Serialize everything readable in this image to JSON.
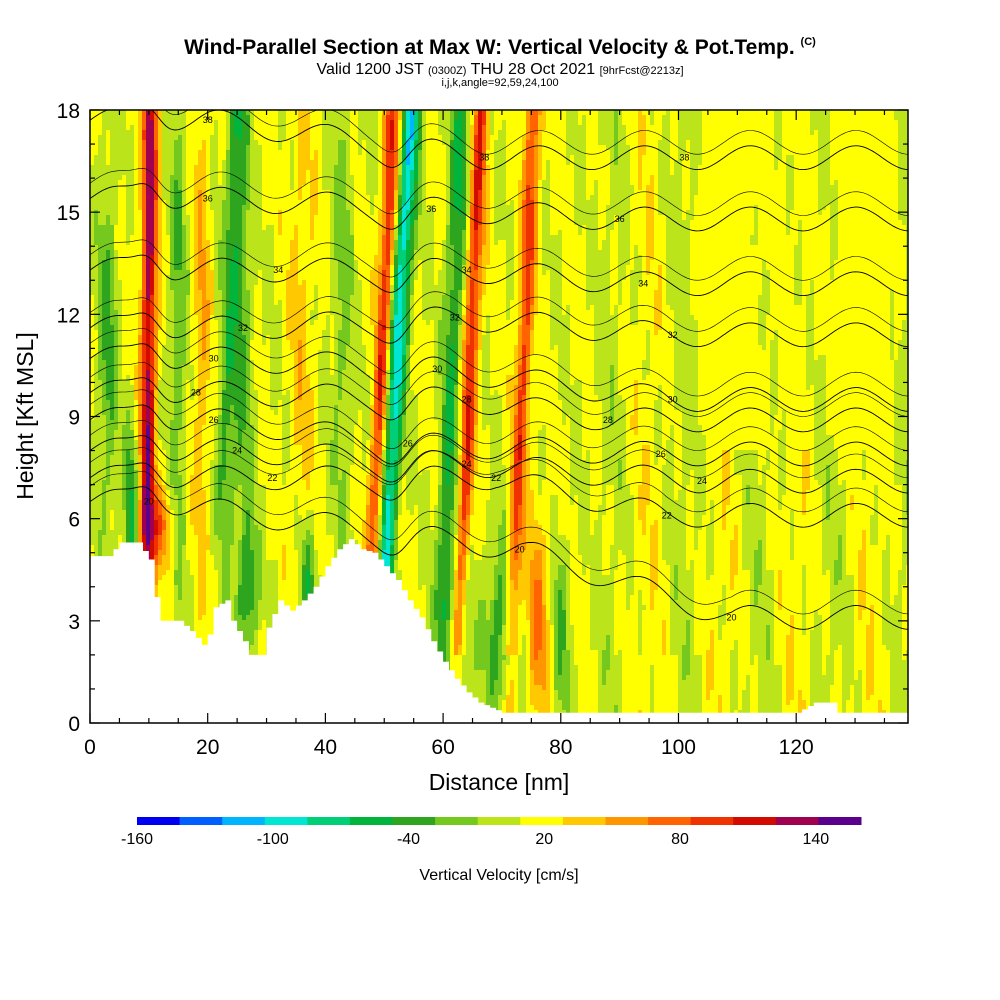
{
  "header": {
    "title": "Wind-Parallel Section at Max W: Vertical Velocity & Pot.Temp.",
    "title_tag": "(C)",
    "valid_prefix": "Valid 1200 JST",
    "valid_utc": "(0300Z)",
    "valid_date": "THU 28 Oct 2021",
    "valid_fcst": "[9hrFcst@2213z]",
    "ijk": "i,j,k,angle=92,59,24,100"
  },
  "chart_data": {
    "type": "heatmap",
    "xlabel": "Distance [nm]",
    "ylabel": "Height [Kft MSL]",
    "xlim": [
      0,
      139
    ],
    "ylim": [
      0,
      18
    ],
    "x_ticks": [
      0,
      20,
      40,
      60,
      80,
      100,
      120
    ],
    "y_ticks": [
      0,
      3,
      6,
      9,
      12,
      15,
      18
    ],
    "colorbar": {
      "label": "Vertical Velocity [cm/s]",
      "tick_labels": [
        "-160",
        "-100",
        "-40",
        "20",
        "80",
        "140"
      ],
      "tick_values": [
        -160,
        -100,
        -40,
        20,
        80,
        140
      ],
      "range": [
        -160,
        160
      ],
      "colors": [
        "#0000f0",
        "#0060ff",
        "#00b4ff",
        "#00e6d2",
        "#00cf78",
        "#00b43c",
        "#2ea51e",
        "#74c81e",
        "#bbe51a",
        "#ffff00",
        "#ffc800",
        "#ff9600",
        "#ff6400",
        "#f03200",
        "#d20a00",
        "#a00050",
        "#5a008c"
      ]
    },
    "updraft_cores": [
      {
        "x": 10,
        "peak_w": 120
      },
      {
        "x": 50,
        "peak_w": 90
      },
      {
        "x": 65,
        "peak_w": 90
      },
      {
        "x": 74,
        "peak_w": 80
      }
    ],
    "downdraft_cores": [
      {
        "x": 53,
        "peak_w": -110
      },
      {
        "x": 62,
        "peak_w": -60
      },
      {
        "x": 24,
        "peak_w": -50
      }
    ],
    "theta_contour_labels": [
      {
        "value": "38",
        "x": 20,
        "y": 17.7
      },
      {
        "value": "38",
        "x": 67,
        "y": 16.6
      },
      {
        "value": "38",
        "x": 101,
        "y": 16.6
      },
      {
        "value": "36",
        "x": 20,
        "y": 15.4
      },
      {
        "value": "36",
        "x": 58,
        "y": 15.1
      },
      {
        "value": "36",
        "x": 90,
        "y": 14.8
      },
      {
        "value": "34",
        "x": 32,
        "y": 13.3
      },
      {
        "value": "34",
        "x": 64,
        "y": 13.3
      },
      {
        "value": "34",
        "x": 94,
        "y": 12.9
      },
      {
        "value": "32",
        "x": 26,
        "y": 11.6
      },
      {
        "value": "32",
        "x": 62,
        "y": 11.9
      },
      {
        "value": "32",
        "x": 99,
        "y": 11.4
      },
      {
        "value": "30",
        "x": 21,
        "y": 10.7
      },
      {
        "value": "30",
        "x": 59,
        "y": 10.4
      },
      {
        "value": "30",
        "x": 99,
        "y": 9.5
      },
      {
        "value": "28",
        "x": 18,
        "y": 9.7
      },
      {
        "value": "28",
        "x": 64,
        "y": 9.5
      },
      {
        "value": "28",
        "x": 88,
        "y": 8.9
      },
      {
        "value": "26",
        "x": 21,
        "y": 8.9
      },
      {
        "value": "26",
        "x": 54,
        "y": 8.2
      },
      {
        "value": "26",
        "x": 97,
        "y": 7.9
      },
      {
        "value": "24",
        "x": 25,
        "y": 8.0
      },
      {
        "value": "24",
        "x": 64,
        "y": 7.6
      },
      {
        "value": "24",
        "x": 104,
        "y": 7.1
      },
      {
        "value": "22",
        "x": 31,
        "y": 7.2
      },
      {
        "value": "22",
        "x": 69,
        "y": 7.2
      },
      {
        "value": "22",
        "x": 98,
        "y": 6.1
      },
      {
        "value": "20",
        "x": 10,
        "y": 6.5
      },
      {
        "value": "20",
        "x": 73,
        "y": 5.1
      },
      {
        "value": "20",
        "x": 109,
        "y": 3.1
      }
    ],
    "terrain": [
      [
        0,
        4.9
      ],
      [
        3,
        4.9
      ],
      [
        5,
        5.3
      ],
      [
        8,
        5.3
      ],
      [
        10,
        4.8
      ],
      [
        11,
        3.7
      ],
      [
        12,
        3.0
      ],
      [
        15,
        3.0
      ],
      [
        17,
        2.7
      ],
      [
        19,
        2.3
      ],
      [
        20,
        2.6
      ],
      [
        21,
        3.4
      ],
      [
        23,
        3.6
      ],
      [
        24,
        3.0
      ],
      [
        26,
        2.4
      ],
      [
        27,
        2.0
      ],
      [
        29,
        2.0
      ],
      [
        30,
        2.8
      ],
      [
        32,
        3.6
      ],
      [
        34,
        3.3
      ],
      [
        36,
        3.6
      ],
      [
        38,
        4.0
      ],
      [
        40,
        4.6
      ],
      [
        42,
        5.1
      ],
      [
        44,
        5.4
      ],
      [
        46,
        5.1
      ],
      [
        48,
        5.0
      ],
      [
        50,
        4.6
      ],
      [
        52,
        4.2
      ],
      [
        54,
        3.6
      ],
      [
        56,
        3.1
      ],
      [
        58,
        2.4
      ],
      [
        60,
        1.8
      ],
      [
        62,
        1.3
      ],
      [
        64,
        0.9
      ],
      [
        66,
        0.6
      ],
      [
        68,
        0.45
      ],
      [
        70,
        0.3
      ],
      [
        120,
        0.3
      ],
      [
        123,
        0.6
      ],
      [
        126,
        0.6
      ],
      [
        127,
        0.3
      ],
      [
        139,
        0.3
      ]
    ]
  }
}
